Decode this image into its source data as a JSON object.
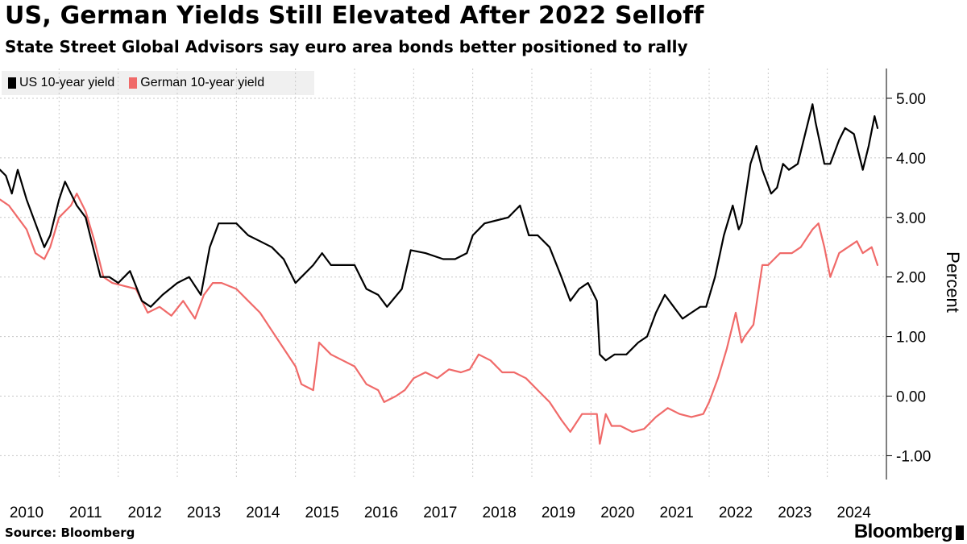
{
  "header": {
    "title": "US, German Yields Still Elevated After 2022 Selloff",
    "subtitle": "State Street Global Advisors say euro area bonds better positioned to rally"
  },
  "footer": {
    "source": "Source: Bloomberg",
    "brand": "Bloomberg"
  },
  "chart_data": {
    "type": "line",
    "title": "US, German Yields Still Elevated After 2022 Selloff",
    "subtitle": "State Street Global Advisors say euro area bonds better positioned to rally",
    "ylabel": "Percent",
    "xlabel": "",
    "ylim": [
      -1.4,
      5.5
    ],
    "xlim": [
      2010.0,
      2025.0
    ],
    "y_ticks": [
      -1.0,
      0.0,
      1.0,
      2.0,
      3.0,
      4.0,
      5.0
    ],
    "y_tick_labels": [
      "-1.00",
      "0.00",
      "1.00",
      "2.00",
      "3.00",
      "4.00",
      "5.00"
    ],
    "x_tick_labels": [
      "2010",
      "2011",
      "2012",
      "2013",
      "2014",
      "2015",
      "2016",
      "2017",
      "2018",
      "2019",
      "2020",
      "2021",
      "2022",
      "2023",
      "2024"
    ],
    "grid": true,
    "legend_position": "top-left",
    "series": [
      {
        "name": "US 10-year yield",
        "color": "#000000",
        "x": [
          2010.0,
          2010.1,
          2010.2,
          2010.3,
          2010.45,
          2010.6,
          2010.75,
          2010.85,
          2011.0,
          2011.1,
          2011.2,
          2011.3,
          2011.45,
          2011.6,
          2011.7,
          2011.85,
          2012.0,
          2012.2,
          2012.4,
          2012.55,
          2012.75,
          2013.0,
          2013.2,
          2013.4,
          2013.55,
          2013.7,
          2014.0,
          2014.2,
          2014.4,
          2014.6,
          2014.8,
          2015.0,
          2015.1,
          2015.3,
          2015.45,
          2015.6,
          2015.8,
          2016.0,
          2016.2,
          2016.4,
          2016.55,
          2016.8,
          2016.95,
          2017.2,
          2017.5,
          2017.7,
          2017.9,
          2018.0,
          2018.2,
          2018.4,
          2018.6,
          2018.8,
          2018.95,
          2019.1,
          2019.3,
          2019.5,
          2019.65,
          2019.8,
          2019.95,
          2020.1,
          2020.15,
          2020.25,
          2020.4,
          2020.6,
          2020.8,
          2020.95,
          2021.1,
          2021.25,
          2021.4,
          2021.55,
          2021.7,
          2021.85,
          2021.95,
          2022.1,
          2022.25,
          2022.4,
          2022.5,
          2022.55,
          2022.7,
          2022.8,
          2022.9,
          2023.05,
          2023.15,
          2023.25,
          2023.35,
          2023.5,
          2023.6,
          2023.75,
          2023.8,
          2023.95,
          2024.05,
          2024.2,
          2024.3,
          2024.45,
          2024.6,
          2024.7,
          2024.8,
          2024.85
        ],
        "values": [
          3.8,
          3.7,
          3.4,
          3.8,
          3.3,
          2.9,
          2.5,
          2.7,
          3.3,
          3.6,
          3.4,
          3.2,
          3.0,
          2.4,
          2.0,
          2.0,
          1.9,
          2.1,
          1.6,
          1.5,
          1.7,
          1.9,
          2.0,
          1.7,
          2.5,
          2.9,
          2.9,
          2.7,
          2.6,
          2.5,
          2.3,
          1.9,
          2.0,
          2.2,
          2.4,
          2.2,
          2.2,
          2.2,
          1.8,
          1.7,
          1.5,
          1.8,
          2.45,
          2.4,
          2.3,
          2.3,
          2.4,
          2.7,
          2.9,
          2.95,
          3.0,
          3.2,
          2.7,
          2.7,
          2.5,
          2.0,
          1.6,
          1.8,
          1.9,
          1.6,
          0.7,
          0.6,
          0.7,
          0.7,
          0.9,
          1.0,
          1.4,
          1.7,
          1.5,
          1.3,
          1.4,
          1.5,
          1.5,
          2.0,
          2.7,
          3.2,
          2.8,
          2.9,
          3.9,
          4.2,
          3.8,
          3.4,
          3.5,
          3.9,
          3.8,
          3.9,
          4.3,
          4.9,
          4.6,
          3.9,
          3.9,
          4.3,
          4.5,
          4.4,
          3.8,
          4.2,
          4.7,
          4.5
        ]
      },
      {
        "name": "German 10-year yield",
        "color": "#f06a69",
        "x": [
          2010.0,
          2010.15,
          2010.3,
          2010.45,
          2010.6,
          2010.75,
          2010.85,
          2011.0,
          2011.2,
          2011.3,
          2011.45,
          2011.6,
          2011.75,
          2011.9,
          2012.1,
          2012.3,
          2012.5,
          2012.7,
          2012.9,
          2013.1,
          2013.3,
          2013.45,
          2013.6,
          2013.75,
          2014.0,
          2014.2,
          2014.4,
          2014.6,
          2014.8,
          2015.0,
          2015.1,
          2015.3,
          2015.4,
          2015.6,
          2015.8,
          2016.0,
          2016.2,
          2016.4,
          2016.5,
          2016.7,
          2016.85,
          2017.0,
          2017.2,
          2017.4,
          2017.6,
          2017.8,
          2017.95,
          2018.1,
          2018.3,
          2018.5,
          2018.7,
          2018.9,
          2019.1,
          2019.3,
          2019.5,
          2019.65,
          2019.85,
          2020.1,
          2020.15,
          2020.25,
          2020.35,
          2020.5,
          2020.7,
          2020.9,
          2021.1,
          2021.3,
          2021.5,
          2021.7,
          2021.9,
          2022.0,
          2022.15,
          2022.3,
          2022.45,
          2022.55,
          2022.6,
          2022.75,
          2022.9,
          2023.0,
          2023.2,
          2023.4,
          2023.55,
          2023.75,
          2023.85,
          2023.95,
          2024.05,
          2024.2,
          2024.35,
          2024.5,
          2024.6,
          2024.75,
          2024.85
        ],
        "values": [
          3.3,
          3.2,
          3.0,
          2.8,
          2.4,
          2.3,
          2.5,
          3.0,
          3.2,
          3.4,
          3.1,
          2.6,
          2.0,
          1.9,
          1.85,
          1.8,
          1.4,
          1.5,
          1.35,
          1.6,
          1.3,
          1.7,
          1.9,
          1.9,
          1.8,
          1.6,
          1.4,
          1.1,
          0.8,
          0.5,
          0.2,
          0.1,
          0.9,
          0.7,
          0.6,
          0.5,
          0.2,
          0.1,
          -0.1,
          0.0,
          0.1,
          0.3,
          0.4,
          0.3,
          0.45,
          0.4,
          0.45,
          0.7,
          0.6,
          0.4,
          0.4,
          0.3,
          0.1,
          -0.1,
          -0.4,
          -0.6,
          -0.3,
          -0.3,
          -0.8,
          -0.3,
          -0.5,
          -0.5,
          -0.6,
          -0.55,
          -0.35,
          -0.2,
          -0.3,
          -0.35,
          -0.3,
          -0.1,
          0.3,
          0.8,
          1.4,
          0.9,
          1.0,
          1.2,
          2.2,
          2.2,
          2.4,
          2.4,
          2.5,
          2.8,
          2.9,
          2.5,
          2.0,
          2.4,
          2.5,
          2.6,
          2.4,
          2.5,
          2.2
        ]
      }
    ]
  }
}
